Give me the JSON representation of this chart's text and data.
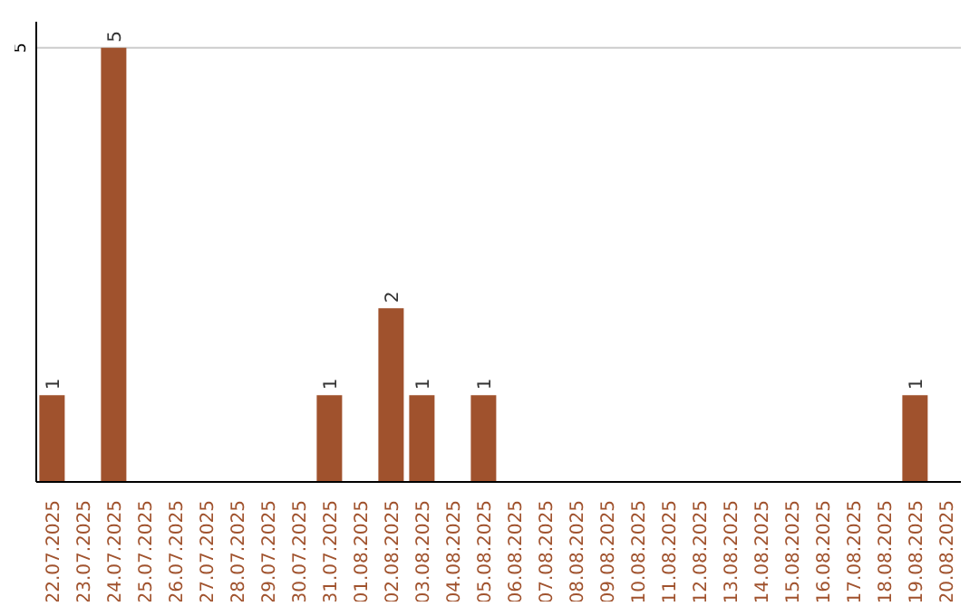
{
  "chart_data": {
    "type": "bar",
    "categories": [
      "22.07.2025",
      "23.07.2025",
      "24.07.2025",
      "25.07.2025",
      "26.07.2025",
      "27.07.2025",
      "28.07.2025",
      "29.07.2025",
      "30.07.2025",
      "31.07.2025",
      "01.08.2025",
      "02.08.2025",
      "03.08.2025",
      "04.08.2025",
      "05.08.2025",
      "06.08.2025",
      "07.08.2025",
      "08.08.2025",
      "09.08.2025",
      "10.08.2025",
      "11.08.2025",
      "12.08.2025",
      "13.08.2025",
      "14.08.2025",
      "15.08.2025",
      "16.08.2025",
      "17.08.2025",
      "18.08.2025",
      "19.08.2025",
      "20.08.2025"
    ],
    "values": [
      1,
      0,
      5,
      0,
      0,
      0,
      0,
      0,
      0,
      1,
      0,
      2,
      1,
      0,
      1,
      0,
      0,
      0,
      0,
      0,
      0,
      0,
      0,
      0,
      0,
      0,
      0,
      0,
      1,
      0
    ],
    "color": "#a0522d",
    "value_labels": [
      "1",
      null,
      "5",
      null,
      null,
      null,
      null,
      null,
      null,
      "1",
      null,
      "2",
      "1",
      null,
      "1",
      null,
      null,
      null,
      null,
      null,
      null,
      null,
      null,
      null,
      null,
      null,
      null,
      null,
      "1",
      null
    ],
    "ylim": [
      0,
      5.3
    ],
    "yticks": [
      5
    ],
    "grid": "y"
  }
}
